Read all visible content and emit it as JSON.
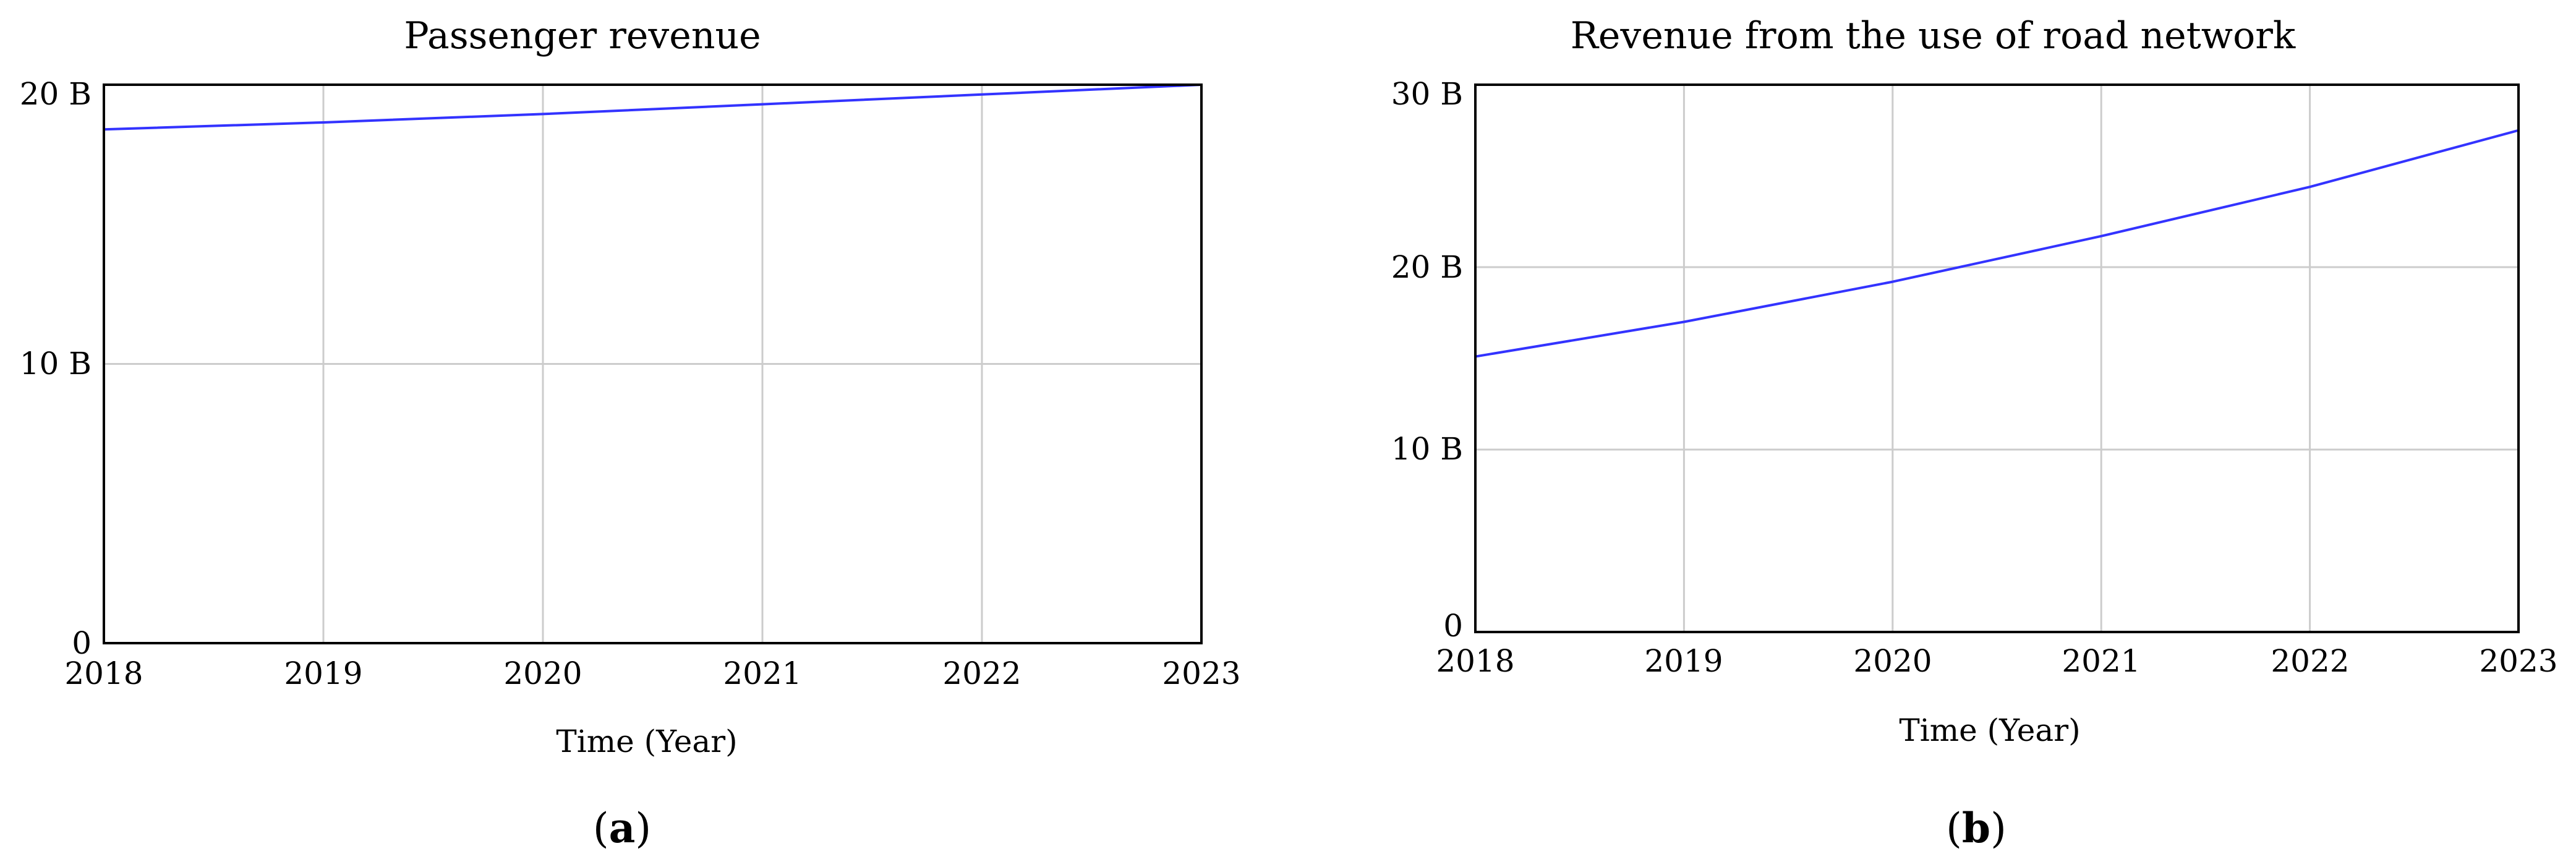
{
  "colors": {
    "series_line": "#3333ff",
    "grid": "#cccccc",
    "frame": "#000000",
    "background": "#ffffff"
  },
  "chart_data": [
    {
      "type": "line",
      "panel_label": "a",
      "title": "Passenger revenue",
      "xlabel": "Time (Year)",
      "ylabel": "",
      "xlim": [
        2018,
        2023
      ],
      "ylim": [
        0,
        20
      ],
      "x_ticks": [
        2018,
        2019,
        2020,
        2021,
        2022,
        2023
      ],
      "x_tick_labels": [
        "2018",
        "2019",
        "2020",
        "2021",
        "2022",
        "2023"
      ],
      "y_ticks": [
        0,
        10,
        20
      ],
      "y_tick_labels": [
        "0",
        "10 B",
        "20 B"
      ],
      "grid": true,
      "series": [
        {
          "x": [
            2018,
            2019,
            2020,
            2021,
            2022,
            2023
          ],
          "values": [
            18.4,
            18.65,
            18.95,
            19.3,
            19.65,
            20.0
          ]
        }
      ]
    },
    {
      "type": "line",
      "panel_label": "b",
      "title": "Revenue from the use of road network",
      "xlabel": "Time (Year)",
      "ylabel": "",
      "xlim": [
        2018,
        2023
      ],
      "ylim": [
        0,
        30
      ],
      "x_ticks": [
        2018,
        2019,
        2020,
        2021,
        2022,
        2023
      ],
      "x_tick_labels": [
        "2018",
        "2019",
        "2020",
        "2021",
        "2022",
        "2023"
      ],
      "y_ticks": [
        0,
        10,
        20,
        30
      ],
      "y_tick_labels": [
        "0",
        "10 B",
        "20 B",
        "30 B"
      ],
      "grid": true,
      "series": [
        {
          "x": [
            2018,
            2019,
            2020,
            2021,
            2022,
            2023
          ],
          "values": [
            15.1,
            17.0,
            19.2,
            21.7,
            24.4,
            27.5
          ]
        }
      ]
    }
  ]
}
